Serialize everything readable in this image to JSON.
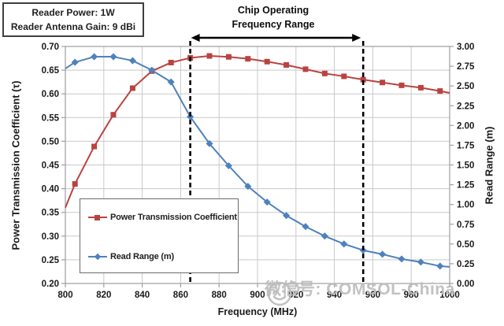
{
  "info_box": {
    "line1": "Reader Power: 1W",
    "line2": "Reader Antenna Gain: 9 dBi"
  },
  "annotation": {
    "line1": "Chip Operating",
    "line2": "Frequency Range"
  },
  "watermark": {
    "logo": "smiley-face-logo",
    "text": "微信号: COMSOL-China"
  },
  "colors": {
    "power_series": "#B94341",
    "read_range_series": "#4F81BD",
    "gridline": "#c9c9c9",
    "axis_frame": "#9e9e9e",
    "tick_text": "#1a1a1a",
    "annotation_black": "#000000",
    "watermark_gray": "#bbbbbb"
  },
  "chart_data": {
    "type": "line",
    "xlabel": "Frequency (MHz)",
    "ylabel_left": "Power Transmission Coefficient (τ)",
    "ylabel_right": "Read Range (m)",
    "xlim": [
      800,
      1000
    ],
    "ylim_left": [
      0.2,
      0.7
    ],
    "ylim_right": [
      0.0,
      3.0
    ],
    "x_ticks": [
      800,
      820,
      840,
      860,
      880,
      900,
      920,
      940,
      960,
      980,
      1000
    ],
    "y_ticks_left": [
      0.7,
      0.65,
      0.6,
      0.55,
      0.5,
      0.45,
      0.4,
      0.35,
      0.3,
      0.25,
      0.2
    ],
    "y_ticks_right": [
      3.0,
      2.75,
      2.5,
      2.25,
      2.0,
      1.75,
      1.5,
      1.25,
      1.0,
      0.75,
      0.5,
      0.25,
      0.0
    ],
    "grid": true,
    "legend_position": "inside lower-left",
    "chip_operating_range_mhz": [
      865,
      955
    ],
    "series": [
      {
        "name": "Power Transmission Coefficient",
        "axis": "left",
        "marker": "square",
        "color": "#B94341",
        "line_endpoints_without_marker": true,
        "x": [
          800,
          805,
          815,
          825,
          835,
          845,
          855,
          865,
          875,
          885,
          895,
          905,
          915,
          925,
          935,
          945,
          955,
          965,
          975,
          985,
          995,
          1000
        ],
        "y": [
          0.36,
          0.41,
          0.489,
          0.556,
          0.612,
          0.648,
          0.666,
          0.676,
          0.68,
          0.678,
          0.674,
          0.668,
          0.661,
          0.652,
          0.643,
          0.637,
          0.63,
          0.624,
          0.618,
          0.613,
          0.606,
          0.602
        ]
      },
      {
        "name": "Read Range (m)",
        "axis": "right",
        "marker": "diamond",
        "color": "#4F81BD",
        "line_endpoints_without_marker": true,
        "x": [
          800,
          805,
          815,
          825,
          835,
          845,
          855,
          865,
          875,
          885,
          895,
          905,
          915,
          925,
          935,
          945,
          955,
          965,
          975,
          985,
          995,
          1000
        ],
        "y": [
          2.72,
          2.8,
          2.87,
          2.87,
          2.82,
          2.7,
          2.55,
          2.11,
          1.77,
          1.49,
          1.23,
          1.03,
          0.86,
          0.72,
          0.6,
          0.5,
          0.42,
          0.37,
          0.31,
          0.27,
          0.22,
          0.21
        ]
      }
    ]
  }
}
